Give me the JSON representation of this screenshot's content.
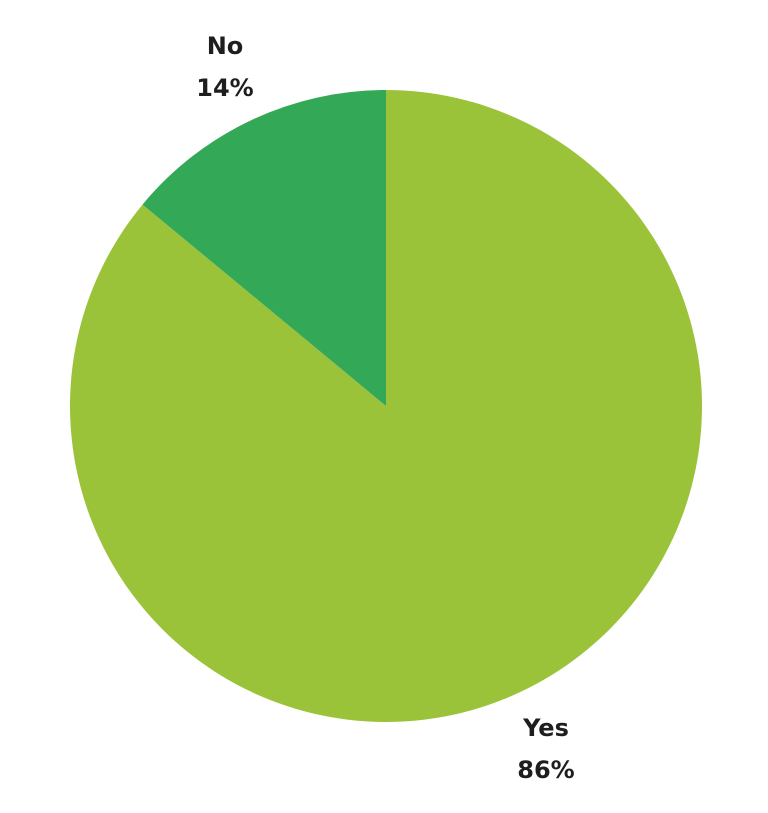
{
  "chart_data": {
    "type": "pie",
    "title": "",
    "slices": [
      {
        "label": "Yes",
        "value": 86,
        "value_label": "86%",
        "color": "#9bc33a"
      },
      {
        "label": "No",
        "value": 14,
        "value_label": "14%",
        "color": "#33a857"
      }
    ],
    "start_angle": "top",
    "direction": "clockwise",
    "legend": "none"
  }
}
